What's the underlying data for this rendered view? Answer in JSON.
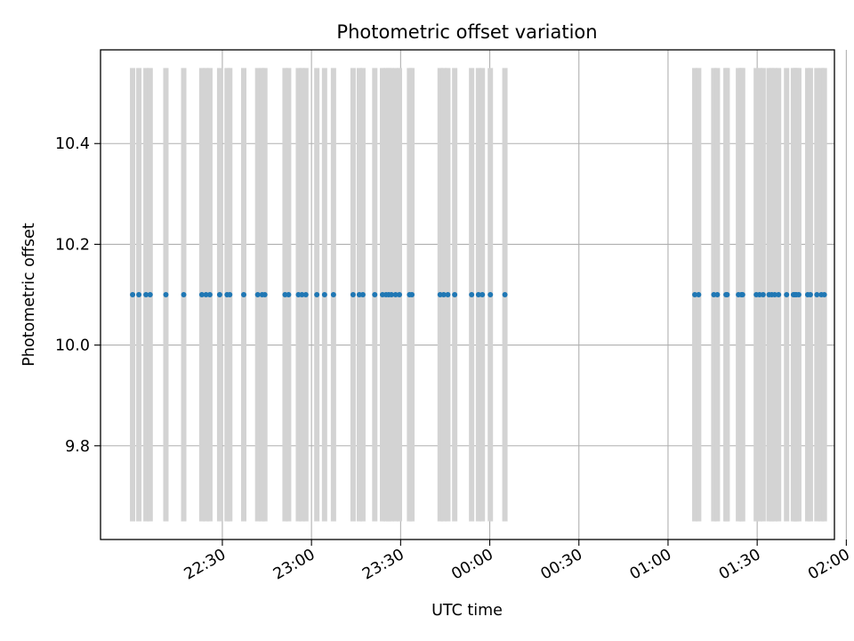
{
  "chart_data": {
    "type": "scatter",
    "title": "Photometric offset variation",
    "xlabel": "UTC time",
    "ylabel": "Photometric offset",
    "x_axis": {
      "unit": "minutes after 22:00 UTC",
      "range": [
        -11,
        236
      ],
      "ticks": [
        30,
        60,
        90,
        120,
        150,
        180,
        210,
        240
      ],
      "tick_labels": [
        "22:30",
        "23:00",
        "23:30",
        "00:00",
        "00:30",
        "01:00",
        "01:30",
        "02:00"
      ],
      "tick_label_rotation": "30deg"
    },
    "y_axis": {
      "range": [
        9.614,
        10.586
      ],
      "ticks": [
        9.8,
        10.0,
        10.2,
        10.4
      ],
      "tick_labels": [
        "9.8",
        "10.0",
        "10.2",
        "10.4"
      ]
    },
    "grid": true,
    "series": [
      {
        "kind": "points",
        "color": "#1f77b4",
        "y_value": 10.1,
        "error": 0.45,
        "x": [
          -0.2,
          1.9,
          4.3,
          5.7,
          11.0,
          17.0,
          23.1,
          24.5,
          25.8,
          29.1,
          31.6,
          32.5,
          37.2,
          41.9,
          43.4,
          44.3,
          51.1,
          52.3,
          55.6,
          56.8,
          58.1,
          61.8,
          64.4,
          67.4,
          74.0,
          76.1,
          77.3,
          81.3,
          83.9,
          85.1,
          86.0,
          86.9,
          88.3,
          89.6,
          93.0,
          93.8,
          103.3,
          104.5,
          105.9,
          108.2,
          113.9,
          116.2,
          117.5,
          120.2,
          125.1
        ]
      },
      {
        "kind": "points",
        "color": "#1f77b4",
        "y_value": 10.1,
        "error": 0.45,
        "x": [
          189.0,
          190.3,
          195.4,
          196.6,
          199.5,
          199.9,
          203.7,
          204.7,
          205.1,
          209.7,
          210.8,
          212.0,
          214.0,
          214.9,
          215.9,
          217.2,
          219.9,
          222.2,
          222.7,
          223.2,
          224.0,
          227.0,
          227.9,
          230.1,
          231.6,
          232.6
        ]
      }
    ],
    "error_bar_color": "#d3d3d3"
  }
}
